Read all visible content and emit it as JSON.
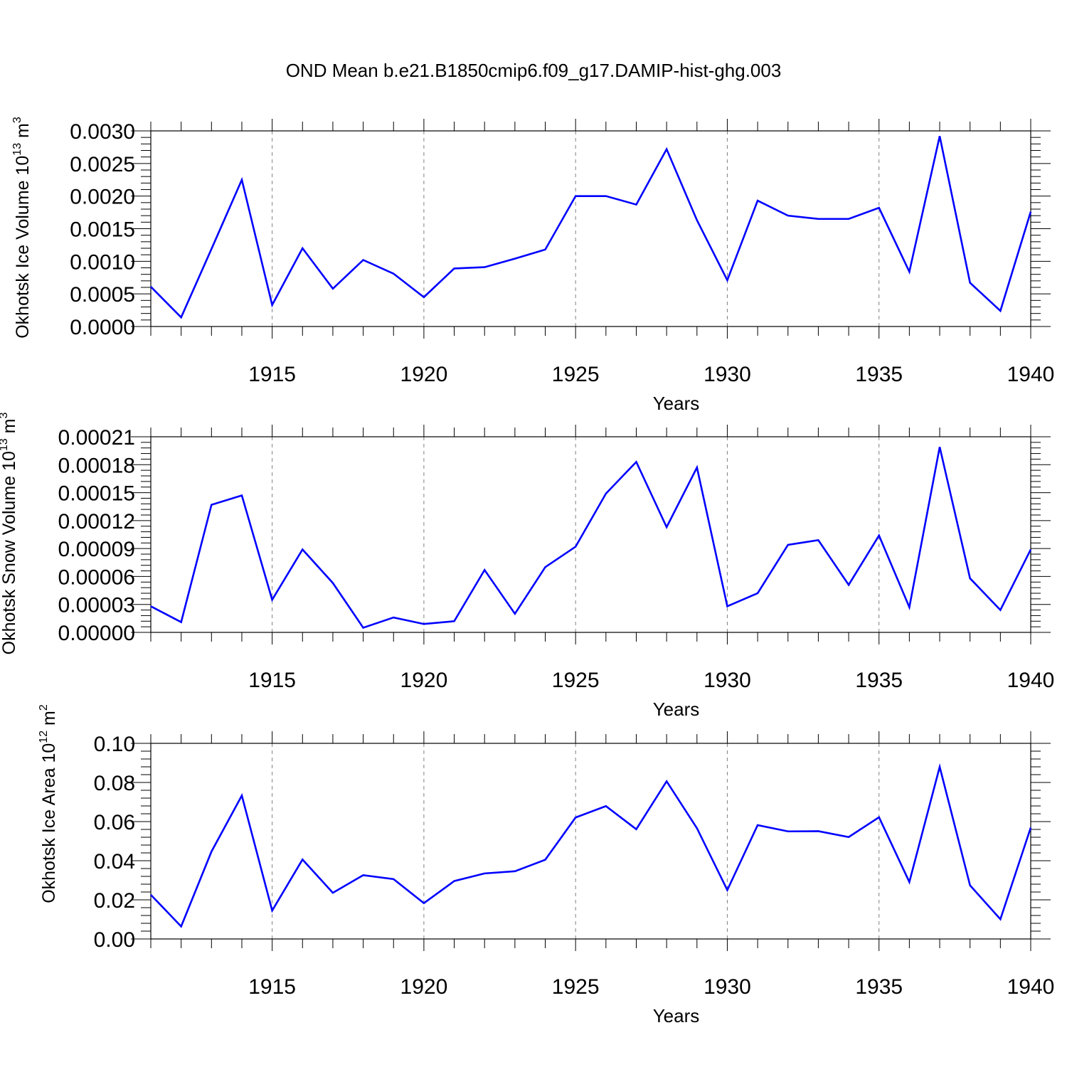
{
  "title": "OND Mean b.e21.B1850cmip6.f09_g17.DAMIP-hist-ghg.003",
  "line_color": "#0000ff",
  "chart_data": [
    {
      "type": "line",
      "ylabel": "Okhotsk Ice Volume 10",
      "ylabel_exp": "13",
      "ylabel_unit": " m",
      "ylabel_unit_exp": "3",
      "xlabel": "Years",
      "xlim": [
        1911,
        1940
      ],
      "ylim": [
        0,
        0.003
      ],
      "yticks": [
        "0.0000",
        "0.0005",
        "0.0010",
        "0.0015",
        "0.0020",
        "0.0025",
        "0.0030"
      ],
      "xticks": [
        "1915",
        "1920",
        "1925",
        "1930",
        "1935",
        "1940"
      ],
      "x": [
        1911,
        1912,
        1913,
        1914,
        1915,
        1916,
        1917,
        1918,
        1919,
        1920,
        1921,
        1922,
        1923,
        1924,
        1925,
        1926,
        1927,
        1928,
        1929,
        1930,
        1931,
        1932,
        1933,
        1934,
        1935,
        1936,
        1937,
        1938,
        1939,
        1940
      ],
      "values": [
        0.00061,
        0.00014,
        0.00119,
        0.00225,
        0.00033,
        0.0012,
        0.00058,
        0.00102,
        0.00081,
        0.00045,
        0.00089,
        0.00091,
        0.00104,
        0.00118,
        0.002,
        0.002,
        0.00187,
        0.00272,
        0.00163,
        0.00071,
        0.00193,
        0.0017,
        0.00165,
        0.00165,
        0.00182,
        0.00084,
        0.00292,
        0.00067,
        0.00024,
        0.00176
      ]
    },
    {
      "type": "line",
      "ylabel": "Okhotsk Snow Volume 10",
      "ylabel_exp": "13",
      "ylabel_unit": " m",
      "ylabel_unit_exp": "3",
      "xlabel": "Years",
      "xlim": [
        1911,
        1940
      ],
      "ylim": [
        0,
        0.00021
      ],
      "yticks": [
        "0.00000",
        "0.00003",
        "0.00006",
        "0.00009",
        "0.00012",
        "0.00015",
        "0.00018",
        "0.00021"
      ],
      "xticks": [
        "1915",
        "1920",
        "1925",
        "1930",
        "1935",
        "1940"
      ],
      "x": [
        1911,
        1912,
        1913,
        1914,
        1915,
        1916,
        1917,
        1918,
        1919,
        1920,
        1921,
        1922,
        1923,
        1924,
        1925,
        1926,
        1927,
        1928,
        1929,
        1930,
        1931,
        1932,
        1933,
        1934,
        1935,
        1936,
        1937,
        1938,
        1939,
        1940
      ],
      "values": [
        2.8e-05,
        1.1e-05,
        0.000137,
        0.000147,
        3.5e-05,
        8.9e-05,
        5.3e-05,
        5e-06,
        1.6e-05,
        9e-06,
        1.2e-05,
        6.7e-05,
        2e-05,
        7e-05,
        9.2e-05,
        0.000149,
        0.000183,
        0.000113,
        0.000177,
        2.8e-05,
        4.2e-05,
        9.4e-05,
        9.9e-05,
        5.1e-05,
        0.000104,
        2.7e-05,
        0.000199,
        5.8e-05,
        2.4e-05,
        8.9e-05
      ]
    },
    {
      "type": "line",
      "ylabel": "Okhotsk Ice Area 10",
      "ylabel_exp": "12",
      "ylabel_unit": " m",
      "ylabel_unit_exp": "2",
      "xlabel": "Years",
      "xlim": [
        1911,
        1940
      ],
      "ylim": [
        0,
        0.1
      ],
      "yticks": [
        "0.00",
        "0.02",
        "0.04",
        "0.06",
        "0.08",
        "0.10"
      ],
      "xticks": [
        "1915",
        "1920",
        "1925",
        "1930",
        "1935",
        "1940"
      ],
      "x": [
        1911,
        1912,
        1913,
        1914,
        1915,
        1916,
        1917,
        1918,
        1919,
        1920,
        1921,
        1922,
        1923,
        1924,
        1925,
        1926,
        1927,
        1928,
        1929,
        1930,
        1931,
        1932,
        1933,
        1934,
        1935,
        1936,
        1937,
        1938,
        1939,
        1940
      ],
      "values": [
        0.0226,
        0.0064,
        0.0447,
        0.0733,
        0.0145,
        0.0406,
        0.0236,
        0.0326,
        0.0306,
        0.0183,
        0.0296,
        0.0335,
        0.0346,
        0.0405,
        0.0621,
        0.0679,
        0.0561,
        0.0806,
        0.0566,
        0.025,
        0.0582,
        0.055,
        0.0551,
        0.0521,
        0.0622,
        0.0291,
        0.088,
        0.0274,
        0.0101,
        0.0569
      ]
    }
  ]
}
